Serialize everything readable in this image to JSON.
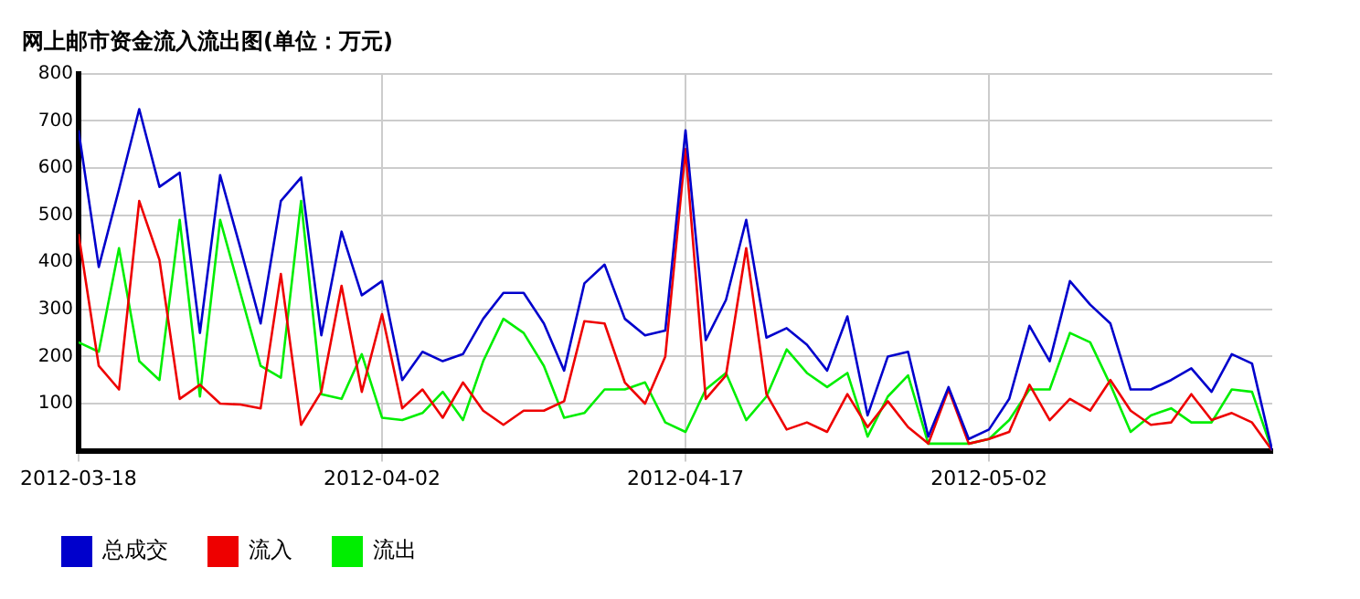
{
  "chart_data": {
    "type": "line",
    "title": "网上邮市资金流入流出图(单位：万元)",
    "x": [
      "2012-03-18",
      "2012-03-19",
      "2012-03-20",
      "2012-03-21",
      "2012-03-22",
      "2012-03-23",
      "2012-03-24",
      "2012-03-25",
      "2012-03-26",
      "2012-03-27",
      "2012-03-28",
      "2012-03-29",
      "2012-03-30",
      "2012-03-31",
      "2012-04-01",
      "2012-04-02",
      "2012-04-03",
      "2012-04-04",
      "2012-04-05",
      "2012-04-06",
      "2012-04-07",
      "2012-04-08",
      "2012-04-09",
      "2012-04-10",
      "2012-04-11",
      "2012-04-12",
      "2012-04-13",
      "2012-04-14",
      "2012-04-15",
      "2012-04-16",
      "2012-04-17",
      "2012-04-18",
      "2012-04-19",
      "2012-04-20",
      "2012-04-21",
      "2012-04-22",
      "2012-04-23",
      "2012-04-24",
      "2012-04-25",
      "2012-04-26",
      "2012-04-27",
      "2012-04-28",
      "2012-04-29",
      "2012-04-30",
      "2012-05-01",
      "2012-05-02",
      "2012-05-03",
      "2012-05-04",
      "2012-05-05",
      "2012-05-06",
      "2012-05-07",
      "2012-05-08",
      "2012-05-09",
      "2012-05-10",
      "2012-05-11",
      "2012-05-12",
      "2012-05-13",
      "2012-05-14",
      "2012-05-15",
      "2012-05-16"
    ],
    "series": [
      {
        "name": "总成交",
        "color": "#0000cc",
        "values": [
          680,
          390,
          555,
          725,
          560,
          590,
          250,
          585,
          430,
          270,
          530,
          580,
          245,
          465,
          330,
          360,
          150,
          210,
          190,
          205,
          280,
          335,
          335,
          270,
          170,
          355,
          395,
          280,
          245,
          255,
          680,
          235,
          320,
          490,
          240,
          260,
          225,
          170,
          285,
          75,
          200,
          210,
          30,
          135,
          25,
          45,
          110,
          265,
          190,
          360,
          310,
          270,
          130,
          130,
          150,
          175,
          125,
          205,
          185,
          0
        ]
      },
      {
        "name": "流入",
        "color": "#ee0000",
        "values": [
          460,
          180,
          130,
          530,
          405,
          110,
          140,
          100,
          98,
          90,
          375,
          55,
          125,
          350,
          125,
          290,
          90,
          130,
          70,
          145,
          85,
          55,
          85,
          85,
          105,
          275,
          270,
          145,
          100,
          200,
          640,
          110,
          160,
          430,
          120,
          45,
          60,
          40,
          120,
          50,
          105,
          50,
          15,
          130,
          15,
          25,
          40,
          140,
          65,
          110,
          85,
          150,
          85,
          55,
          60,
          120,
          65,
          80,
          60,
          0
        ]
      },
      {
        "name": "流出",
        "color": "#00ee00",
        "values": [
          230,
          210,
          430,
          190,
          150,
          490,
          115,
          490,
          335,
          180,
          155,
          530,
          120,
          110,
          205,
          70,
          65,
          80,
          125,
          65,
          190,
          280,
          250,
          180,
          70,
          80,
          130,
          130,
          145,
          60,
          40,
          130,
          165,
          65,
          115,
          215,
          165,
          135,
          165,
          30,
          115,
          160,
          15,
          15,
          15,
          25,
          65,
          130,
          130,
          250,
          230,
          140,
          40,
          75,
          90,
          60,
          60,
          130,
          125,
          0
        ]
      }
    ],
    "xlim": [
      "2012-03-18",
      "2012-05-16"
    ],
    "xticks": [
      "2012-03-18",
      "2012-04-02",
      "2012-04-17",
      "2012-05-02"
    ],
    "ylim": [
      0,
      800
    ],
    "yticks": [
      100,
      200,
      300,
      400,
      500,
      600,
      700,
      800
    ],
    "grid": true,
    "legend": "bottom",
    "marker": "none",
    "line_style": "solid"
  }
}
